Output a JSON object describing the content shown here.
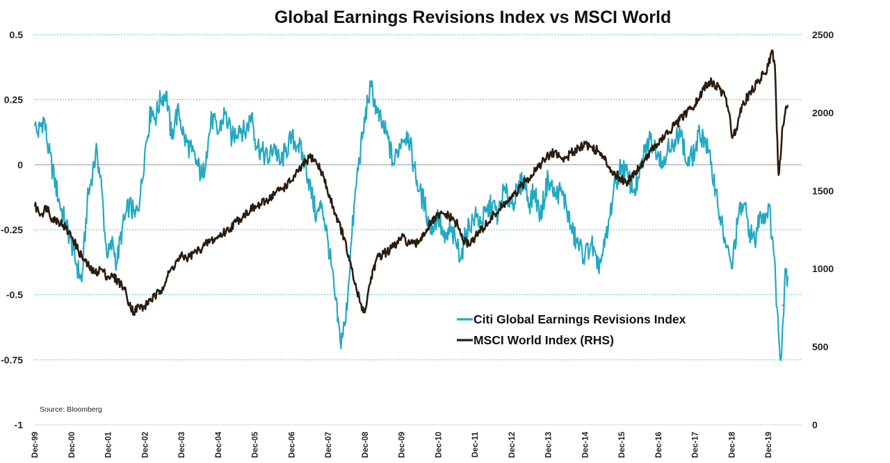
{
  "chart_data": {
    "type": "line",
    "title": "Global Earnings Revisions Index vs MSCI World",
    "source": "Source: Bloomberg",
    "x_tick_labels": [
      "Dec-99",
      "Dec-00",
      "Dec-01",
      "Dec-02",
      "Dec-03",
      "Dec-04",
      "Dec-05",
      "Dec-06",
      "Dec-07",
      "Dec-08",
      "Dec-09",
      "Dec-10",
      "Dec-11",
      "Dec-12",
      "Dec-13",
      "Dec-14",
      "Dec-15",
      "Dec-16",
      "Dec-17",
      "Dec-18",
      "Dec-19"
    ],
    "y_left": {
      "ylim": [
        -1,
        0.5
      ],
      "tick_values": [
        0.5,
        0.25,
        0,
        -0.25,
        -0.5,
        -0.75,
        -1
      ],
      "tick_labels": [
        "0.5",
        "0.25",
        "0",
        "-0.25",
        "-0.5",
        "-0.75",
        "-1"
      ]
    },
    "y_right": {
      "ylim": [
        0,
        2500
      ],
      "tick_values": [
        2500,
        2000,
        1500,
        1000,
        500,
        0
      ],
      "tick_labels": [
        "2500",
        "2000",
        "1500",
        "1000",
        "500",
        "0"
      ]
    },
    "grid": {
      "horizontal": true,
      "style": "dotted",
      "color": "#4fc1d6"
    },
    "legend": {
      "placement": "bottom-center"
    },
    "series": [
      {
        "name": "Citi Global Earnings Revisions Index",
        "axis": "left",
        "color": "#23a9c3",
        "x": [
          1999.92,
          2000.0,
          2000.17,
          2000.3,
          2000.45,
          2000.6,
          2000.75,
          2000.92,
          2001.05,
          2001.2,
          2001.35,
          2001.5,
          2001.62,
          2001.75,
          2001.85,
          2001.92,
          2002.05,
          2002.15,
          2002.3,
          2002.5,
          2002.65,
          2002.8,
          2002.92,
          2003.1,
          2003.2,
          2003.35,
          2003.5,
          2003.65,
          2003.75,
          2003.85,
          2004.0,
          2004.2,
          2004.35,
          2004.5,
          2004.6,
          2004.75,
          2004.92,
          2005.1,
          2005.3,
          2005.5,
          2005.65,
          2005.85,
          2005.92,
          2006.1,
          2006.3,
          2006.45,
          2006.6,
          2006.75,
          2006.92,
          2007.1,
          2007.3,
          2007.45,
          2007.6,
          2007.75,
          2007.92,
          2008.1,
          2008.25,
          2008.4,
          2008.55,
          2008.7,
          2008.85,
          2009.0,
          2009.1,
          2009.25,
          2009.4,
          2009.55,
          2009.7,
          2009.92,
          2010.1,
          2010.25,
          2010.4,
          2010.55,
          2010.7,
          2010.92,
          2011.1,
          2011.25,
          2011.4,
          2011.55,
          2011.7,
          2011.92,
          2012.1,
          2012.25,
          2012.4,
          2012.55,
          2012.7,
          2012.92,
          2013.1,
          2013.25,
          2013.4,
          2013.55,
          2013.7,
          2013.92,
          2014.1,
          2014.25,
          2014.4,
          2014.55,
          2014.7,
          2014.92,
          2015.1,
          2015.25,
          2015.4,
          2015.55,
          2015.7,
          2015.92,
          2016.1,
          2016.25,
          2016.4,
          2016.55,
          2016.7,
          2016.92,
          2017.1,
          2017.2,
          2017.35,
          2017.5,
          2017.7,
          2017.92,
          2018.05,
          2018.2,
          2018.35,
          2018.5,
          2018.6,
          2018.75,
          2018.92,
          2019.1,
          2019.25,
          2019.4,
          2019.55,
          2019.7,
          2019.85,
          2019.92,
          2020.05,
          2020.12,
          2020.2,
          2020.25,
          2020.32,
          2020.38,
          2020.45
        ],
        "values": [
          0.15,
          0.12,
          0.18,
          0.05,
          -0.05,
          -0.15,
          -0.22,
          -0.3,
          -0.38,
          -0.45,
          -0.15,
          -0.02,
          0.05,
          -0.1,
          -0.3,
          -0.35,
          -0.3,
          -0.38,
          -0.25,
          -0.15,
          -0.2,
          -0.12,
          0.05,
          0.22,
          0.18,
          0.25,
          0.28,
          0.1,
          0.18,
          0.2,
          0.1,
          0.05,
          0.0,
          -0.05,
          0.05,
          0.18,
          0.12,
          0.2,
          0.1,
          0.15,
          0.12,
          0.2,
          0.1,
          0.05,
          0.02,
          0.08,
          0.0,
          0.05,
          0.1,
          0.08,
          0.0,
          -0.1,
          -0.2,
          -0.15,
          -0.3,
          -0.5,
          -0.68,
          -0.6,
          -0.3,
          -0.05,
          0.1,
          0.25,
          0.3,
          0.2,
          0.15,
          0.1,
          0.0,
          0.1,
          0.12,
          0.0,
          -0.1,
          -0.15,
          -0.25,
          -0.2,
          -0.3,
          -0.25,
          -0.3,
          -0.35,
          -0.25,
          -0.2,
          -0.22,
          -0.18,
          -0.15,
          -0.2,
          -0.1,
          -0.15,
          -0.1,
          -0.05,
          -0.15,
          -0.1,
          -0.2,
          -0.05,
          -0.12,
          -0.1,
          -0.15,
          -0.25,
          -0.3,
          -0.35,
          -0.3,
          -0.4,
          -0.35,
          -0.25,
          -0.1,
          0.0,
          -0.05,
          -0.1,
          -0.05,
          0.05,
          0.1,
          0.05,
          0.0,
          0.1,
          0.05,
          0.15,
          0.0,
          0.05,
          0.12,
          0.1,
          0.0,
          -0.1,
          -0.2,
          -0.3,
          -0.4,
          -0.2,
          -0.15,
          -0.25,
          -0.3,
          -0.18,
          -0.2,
          -0.15,
          -0.3,
          -0.45,
          -0.65,
          -0.75,
          -0.6,
          -0.4,
          -0.43
        ]
      },
      {
        "name": "MSCI World Index (RHS)",
        "axis": "right",
        "color": "#2a1c0e",
        "x": [
          1999.92,
          2000.1,
          2000.25,
          2000.4,
          2000.55,
          2000.7,
          2000.85,
          2000.95,
          2001.1,
          2001.25,
          2001.4,
          2001.55,
          2001.72,
          2001.9,
          2002.05,
          2002.2,
          2002.35,
          2002.5,
          2002.62,
          2002.75,
          2002.9,
          2003.05,
          2003.2,
          2003.4,
          2003.6,
          2003.8,
          2003.95,
          2004.1,
          2004.25,
          2004.4,
          2004.55,
          2004.7,
          2004.85,
          2005.0,
          2005.2,
          2005.4,
          2005.6,
          2005.8,
          2006.0,
          2006.2,
          2006.35,
          2006.5,
          2006.7,
          2006.9,
          2007.1,
          2007.3,
          2007.45,
          2007.6,
          2007.75,
          2007.9,
          2008.05,
          2008.2,
          2008.35,
          2008.5,
          2008.65,
          2008.8,
          2008.92,
          2009.05,
          2009.15,
          2009.3,
          2009.45,
          2009.6,
          2009.75,
          2009.92,
          2010.1,
          2010.3,
          2010.45,
          2010.6,
          2010.75,
          2010.92,
          2011.1,
          2011.3,
          2011.45,
          2011.6,
          2011.75,
          2011.92,
          2012.1,
          2012.3,
          2012.45,
          2012.6,
          2012.75,
          2012.92,
          2013.1,
          2013.3,
          2013.45,
          2013.6,
          2013.75,
          2013.92,
          2014.1,
          2014.3,
          2014.45,
          2014.6,
          2014.75,
          2014.92,
          2015.1,
          2015.3,
          2015.45,
          2015.6,
          2015.75,
          2015.92,
          2016.05,
          2016.2,
          2016.4,
          2016.55,
          2016.7,
          2016.9,
          2017.1,
          2017.3,
          2017.5,
          2017.7,
          2017.92,
          2018.05,
          2018.15,
          2018.3,
          2018.45,
          2018.6,
          2018.75,
          2018.85,
          2018.92,
          2019.05,
          2019.2,
          2019.35,
          2019.5,
          2019.65,
          2019.8,
          2019.92,
          2020.02,
          2020.1,
          2020.15,
          2020.2,
          2020.25,
          2020.3,
          2020.38,
          2020.45
        ],
        "values": [
          1400,
          1350,
          1400,
          1320,
          1310,
          1280,
          1230,
          1200,
          1120,
          1060,
          1010,
          970,
          1000,
          950,
          950,
          920,
          880,
          780,
          720,
          760,
          750,
          800,
          820,
          880,
          980,
          1050,
          1080,
          1070,
          1100,
          1120,
          1150,
          1180,
          1190,
          1220,
          1250,
          1300,
          1340,
          1380,
          1400,
          1430,
          1460,
          1490,
          1520,
          1560,
          1620,
          1680,
          1720,
          1680,
          1620,
          1500,
          1400,
          1300,
          1200,
          1050,
          900,
          780,
          720,
          900,
          1000,
          1080,
          1100,
          1120,
          1150,
          1200,
          1170,
          1150,
          1200,
          1250,
          1300,
          1340,
          1350,
          1320,
          1280,
          1180,
          1160,
          1200,
          1250,
          1300,
          1350,
          1380,
          1420,
          1450,
          1500,
          1560,
          1600,
          1650,
          1680,
          1720,
          1750,
          1700,
          1720,
          1750,
          1780,
          1800,
          1780,
          1750,
          1700,
          1650,
          1600,
          1580,
          1550,
          1600,
          1650,
          1700,
          1750,
          1800,
          1850,
          1900,
          1950,
          2000,
          2050,
          2100,
          2150,
          2200,
          2180,
          2150,
          2100,
          2000,
          1850,
          1900,
          2050,
          2100,
          2150,
          2200,
          2250,
          2300,
          2400,
          2300,
          1900,
          1600,
          1700,
          1900,
          2000,
          2050
        ]
      }
    ]
  }
}
